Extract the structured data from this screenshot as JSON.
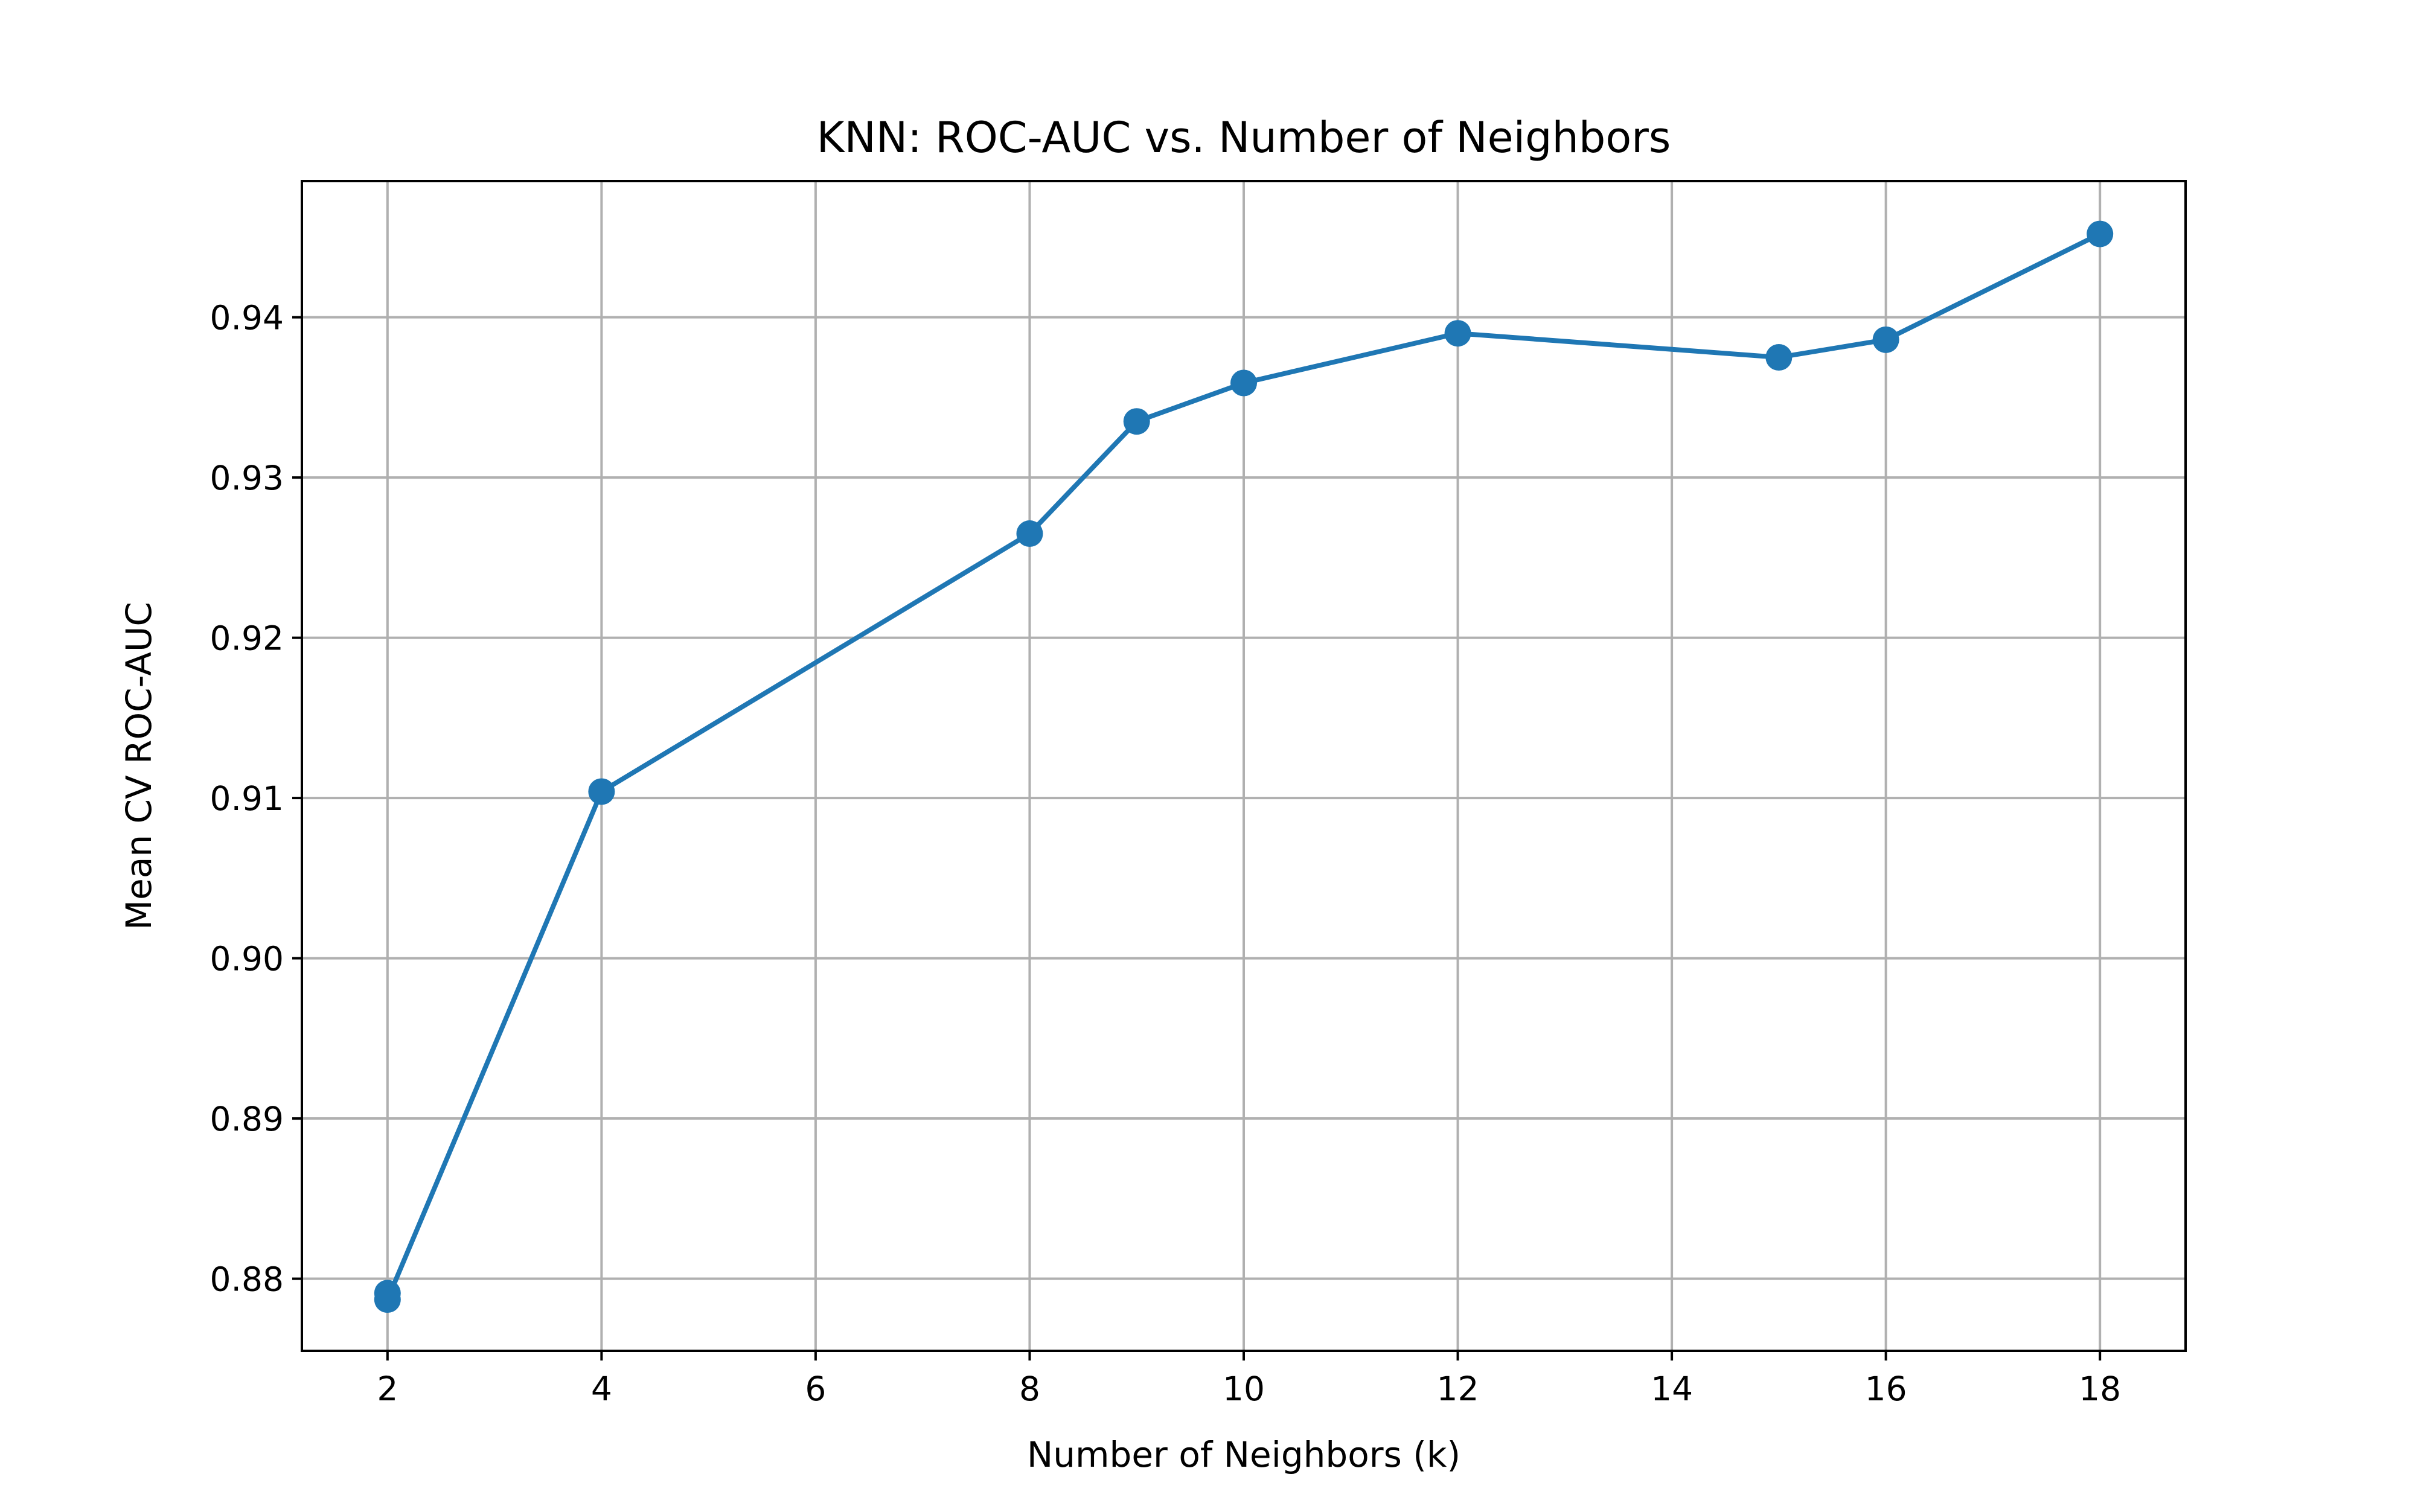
{
  "chart_data": {
    "type": "line",
    "title": "KNN: ROC-AUC vs. Number of Neighbors",
    "xlabel": "Number of Neighbors (k)",
    "ylabel": "Mean CV ROC-AUC",
    "xlim": [
      1.2,
      18.8
    ],
    "ylim": [
      0.8755,
      0.9485
    ],
    "xticks": [
      2,
      4,
      6,
      8,
      10,
      12,
      14,
      16,
      18
    ],
    "xtick_labels": [
      "2",
      "4",
      "6",
      "8",
      "10",
      "12",
      "14",
      "16",
      "18"
    ],
    "yticks": [
      0.88,
      0.89,
      0.9,
      0.91,
      0.92,
      0.93,
      0.94
    ],
    "ytick_labels": [
      "0.88",
      "0.89",
      "0.90",
      "0.91",
      "0.92",
      "0.93",
      "0.94"
    ],
    "grid": true,
    "color": "#1f77b4",
    "marker": "circle",
    "series": [
      {
        "x": [
          2,
          2,
          4,
          8,
          9,
          10,
          12,
          15,
          16,
          18
        ],
        "y": [
          0.8791,
          0.8787,
          0.9104,
          0.9265,
          0.9335,
          0.9359,
          0.939,
          0.9375,
          0.9386,
          0.9452
        ]
      }
    ]
  }
}
